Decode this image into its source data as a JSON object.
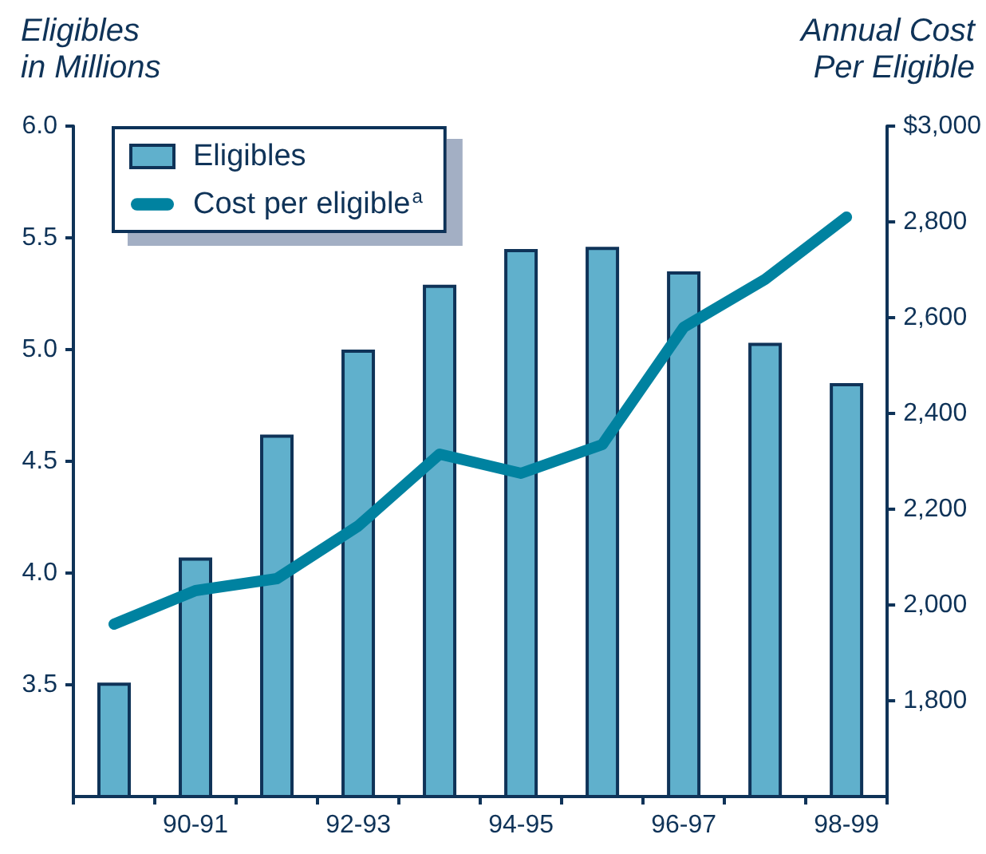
{
  "chart_data": {
    "type": "bar",
    "ylabel": "Eligibles\nin Millions",
    "y2label": "Annual Cost\nPer Eligible",
    "categories": [
      null,
      "90-91",
      null,
      "92-93",
      null,
      "94-95",
      null,
      "96-97",
      null,
      "98-99"
    ],
    "series": [
      {
        "name": "Eligibles",
        "color": "#60b0cc",
        "values": [
          3.51,
          4.07,
          4.62,
          5.0,
          5.29,
          5.45,
          5.46,
          5.35,
          5.03,
          4.85
        ]
      },
      {
        "name": "Cost per eligible$^{a}$",
        "type": "line",
        "axis": "y2",
        "color": "#0082a0",
        "values": [
          1960,
          2030,
          2055,
          2165,
          2315,
          2275,
          2335,
          2580,
          2680,
          2810
        ]
      }
    ],
    "ylim": [
      3,
      6
    ],
    "yticks": [
      3.5,
      {
        "value": 4,
        "label": "4.0"
      },
      4.5,
      {
        "value": 5,
        "label": "5.0"
      },
      5.5,
      {
        "value": 6,
        "label": "6.0"
      }
    ],
    "y2lim": [
      1600,
      3000
    ],
    "y2ticks": [
      {
        "value": 1800,
        "label": "1,800"
      },
      {
        "value": 2000,
        "label": "2,000"
      },
      {
        "value": 2200,
        "label": "2,200"
      },
      {
        "value": 2400,
        "label": "2,400"
      },
      {
        "value": 2600,
        "label": "2,600"
      },
      {
        "value": 2800,
        "label": "2,800"
      },
      {
        "value": 3000,
        "label": "$3,000"
      }
    ],
    "legend": "top left"
  }
}
